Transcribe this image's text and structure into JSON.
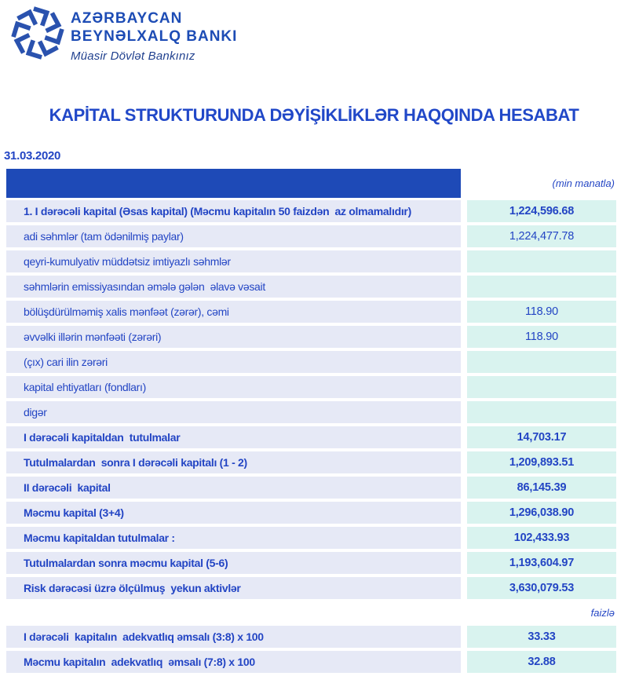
{
  "colors": {
    "brand_blue": "#1d4cb5",
    "text_blue": "#2345c4",
    "title_blue": "#2148c8",
    "header_bar_blue": "#1e4ab7",
    "logo_blue": "#2a52ae",
    "label_bg": "#e6e9f6",
    "value_bg": "#d9f3ef",
    "page_bg": "#ffffff"
  },
  "bank": {
    "name_line1": "AZƏRBAYCAN",
    "name_line2": "BEYNƏLXALQ BANKI",
    "tagline": "Müasir Dövlət Bankınız"
  },
  "report": {
    "title": "KAPİTAL STRUKTURUNDA DƏYİŞİKLİKLƏR HAQQINDA HESABAT",
    "date": "31.03.2020",
    "unit_note": "(min manatla)",
    "percent_note": "faizlə"
  },
  "table": {
    "rows": [
      {
        "label": "1. I dərəcəli kapital (Əsas kapital) (Məcmu kapitalın 50 faizdən  az olmamalıdır)",
        "value": "1,224,596.68",
        "bold": true
      },
      {
        "label": "adi səhmlər (tam ödənilmiş paylar)",
        "value": "1,224,477.78",
        "bold": false
      },
      {
        "label": "qeyri-kumulyativ müddətsiz imtiyazlı səhmlər",
        "value": "",
        "bold": false
      },
      {
        "label": "səhmlərin emissiyasından əmələ gələn  əlavə vəsait",
        "value": "",
        "bold": false
      },
      {
        "label": "bölüşdürülməmiş xalis mənfəət (zərər), cəmi",
        "value": "118.90",
        "bold": false
      },
      {
        "label": "əvvəlki illərin mənfəəti (zərəri)",
        "value": "118.90",
        "bold": false
      },
      {
        "label": "(çıx) cari ilin zərəri",
        "value": "",
        "bold": false
      },
      {
        "label": "kapital ehtiyatları (fondları)",
        "value": "",
        "bold": false
      },
      {
        "label": "digər",
        "value": "",
        "bold": false
      },
      {
        "label": "I dərəcəli kapitaldan  tutulmalar",
        "value": "14,703.17",
        "bold": true
      },
      {
        "label": "Tutulmalardan  sonra I dərəcəli kapitalı (1 - 2)",
        "value": "1,209,893.51",
        "bold": true
      },
      {
        "label": "II dərəcəli  kapital",
        "value": "86,145.39",
        "bold": true
      },
      {
        "label": "Məcmu kapital (3+4)",
        "value": "1,296,038.90",
        "bold": true
      },
      {
        "label": "Məcmu kapitaldan tutulmalar :",
        "value": "102,433.93",
        "bold": true
      },
      {
        "label": "Tutulmalardan sonra məcmu kapital (5-6)",
        "value": "1,193,604.97",
        "bold": true
      },
      {
        "label": "Risk dərəcəsi üzrə ölçülmuş  yekun aktivlər",
        "value": "3,630,079.53",
        "bold": true
      }
    ],
    "ratio_rows": [
      {
        "label": "I dərəcəli  kapitalın  adekvatlıq əmsalı (3:8) x 100",
        "value": "33.33",
        "bold": true
      },
      {
        "label": "Məcmu kapitalın  adekvatlıq  əmsalı (7:8) x 100",
        "value": "32.88",
        "bold": true
      }
    ]
  }
}
